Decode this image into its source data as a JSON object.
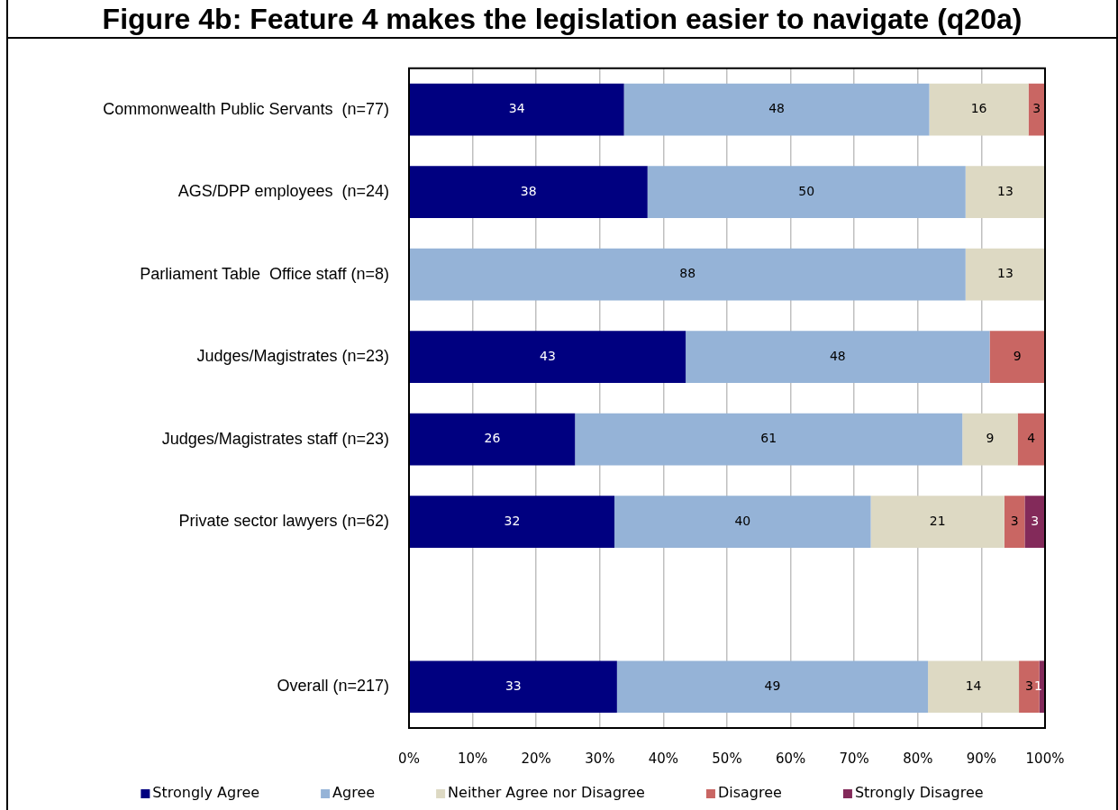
{
  "chart_data": {
    "type": "bar",
    "orientation": "horizontal",
    "stacked": true,
    "title": "Figure 4b: Feature 4 makes the legislation easier to navigate (q20a)",
    "categories": [
      "Commonwealth Public Servants  (n=77)",
      "AGS/DPP employees  (n=24)",
      "Parliament Table  Office staff (n=8)",
      "Judges/Magistrates (n=23)",
      "Judges/Magistrates staff (n=23)",
      "Private sector lawyers (n=62)",
      null,
      "Overall (n=217)"
    ],
    "series": [
      {
        "name": "Strongly Agree",
        "color": "#000080",
        "values": [
          33.8,
          37.5,
          null,
          43.5,
          26.1,
          32.3,
          null,
          32.7
        ],
        "value_labels": [
          "34",
          "38",
          null,
          "43",
          "26",
          "32",
          null,
          "33"
        ]
      },
      {
        "name": "Agree",
        "color": "#95b3d7",
        "values": [
          48.0,
          50.0,
          87.5,
          47.8,
          60.9,
          40.3,
          null,
          48.9
        ],
        "value_labels": [
          "48",
          "50",
          "88",
          "48",
          "61",
          "40",
          null,
          "49"
        ]
      },
      {
        "name": "Neither Agree nor Disagree",
        "color": "#ddd9c3",
        "values": [
          15.6,
          12.5,
          12.5,
          null,
          8.7,
          21.0,
          null,
          14.3
        ],
        "value_labels": [
          "16",
          "13",
          "13",
          null,
          "9",
          "21",
          null,
          "14"
        ]
      },
      {
        "name": "Disagree",
        "color": "#c96663",
        "values": [
          2.6,
          null,
          null,
          8.7,
          4.3,
          3.2,
          null,
          3.2
        ],
        "value_labels": [
          "3",
          null,
          null,
          "9",
          "4",
          "3",
          null,
          "3"
        ]
      },
      {
        "name": "Strongly Disagree",
        "color": "#832a5a",
        "values": [
          null,
          null,
          null,
          null,
          null,
          3.2,
          null,
          0.9
        ],
        "value_labels": [
          null,
          null,
          null,
          null,
          null,
          "3",
          null,
          "1"
        ]
      }
    ],
    "xlim": [
      0,
      100
    ],
    "xticks": [
      {
        "value": 0,
        "label": "0%"
      },
      {
        "value": 10,
        "label": "10%"
      },
      {
        "value": 20,
        "label": "20%"
      },
      {
        "value": 30,
        "label": "30%"
      },
      {
        "value": 40,
        "label": "40%"
      },
      {
        "value": 50,
        "label": "50%"
      },
      {
        "value": 60,
        "label": "60%"
      },
      {
        "value": 70,
        "label": "70%"
      },
      {
        "value": 80,
        "label": "80%"
      },
      {
        "value": 90,
        "label": "90%"
      },
      {
        "value": 100,
        "label": "100%"
      }
    ],
    "grid": "x",
    "legend": "bottom"
  }
}
